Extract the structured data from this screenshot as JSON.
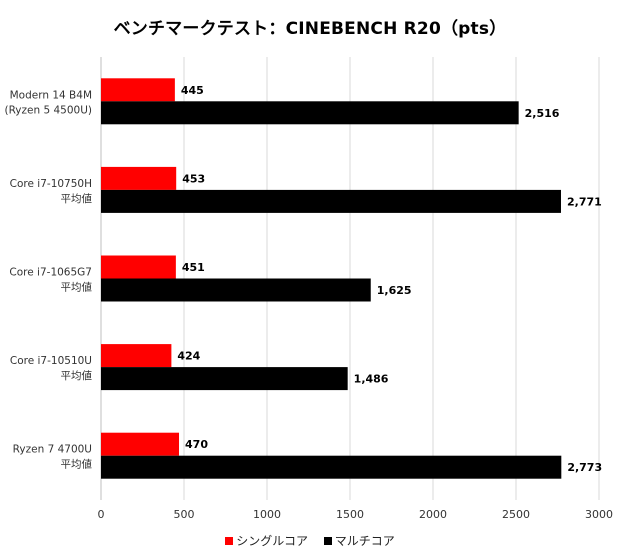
{
  "chart_data": {
    "type": "bar",
    "orientation": "horizontal",
    "title": "ベンチマークテスト：CINEBENCH R20（pts）",
    "categories": [
      [
        "Modern 14 B4M",
        "(Ryzen 5 4500U)"
      ],
      [
        "Core i7-10750H",
        "平均値"
      ],
      [
        "Core i7-1065G7",
        "平均値"
      ],
      [
        "Core i7-10510U",
        "平均値"
      ],
      [
        "Ryzen 7 4700U",
        "平均値"
      ]
    ],
    "series": [
      {
        "name": "シングルコア",
        "color": "#ff0000",
        "values": [
          445,
          453,
          451,
          424,
          470
        ],
        "labels": [
          "445",
          "453",
          "451",
          "424",
          "470"
        ]
      },
      {
        "name": "マルチコア",
        "color": "#000000",
        "values": [
          2516,
          2771,
          1625,
          1486,
          2773
        ],
        "labels": [
          "2,516",
          "2,771",
          "1,625",
          "1,486",
          "2,773"
        ]
      }
    ],
    "xlim": [
      0,
      3000
    ],
    "xticks": [
      "0",
      "500",
      "1000",
      "1500",
      "2000",
      "2500",
      "3000"
    ],
    "grid": true,
    "legend_position": "bottom"
  }
}
